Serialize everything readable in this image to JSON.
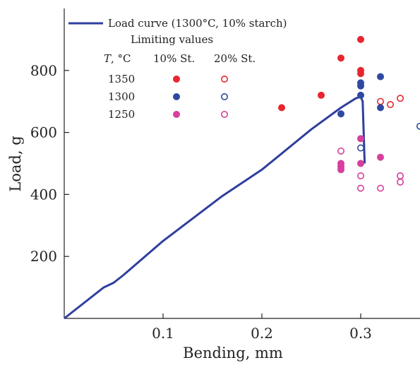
{
  "chart_data": {
    "type": "scatter",
    "xlabel": "Bending, mm",
    "ylabel": "Load, g",
    "xlim": [
      0,
      0.36
    ],
    "ylim": [
      0,
      1000
    ],
    "xticks": [
      0.1,
      0.2,
      0.3
    ],
    "yticks": [
      200,
      400,
      600,
      800
    ],
    "x_tick_labels": [
      "0.1",
      "0.2",
      "0.3"
    ],
    "y_tick_labels": [
      "200",
      "400",
      "600",
      "800"
    ],
    "grid": false,
    "legend": {
      "placement": "top-left",
      "line_label": "Load curve (1300°C, 10% starch)",
      "limiting_header": "Limiting values",
      "temp_header_italic": "T",
      "temp_header_rest": ", °C",
      "col1_header": "10% St.",
      "col2_header": "20% St.",
      "rows": [
        {
          "temp": "1350",
          "color": "#e8262f"
        },
        {
          "temp": "1300",
          "color": "#2e4aa0"
        },
        {
          "temp": "1250",
          "color": "#d63f9e"
        }
      ]
    },
    "line_series": {
      "name": "Load curve (1300°C, 10% starch)",
      "color": "#2e3f9e",
      "x": [
        0,
        0.04,
        0.05,
        0.06,
        0.1,
        0.16,
        0.2,
        0.25,
        0.28,
        0.295,
        0.3,
        0.302,
        0.303,
        0.304
      ],
      "y": [
        0,
        100,
        115,
        140,
        250,
        395,
        480,
        610,
        680,
        710,
        715,
        700,
        600,
        500
      ]
    },
    "scatter_series": [
      {
        "name": "1350 10% St.",
        "filled": true,
        "color": "#e8262f",
        "x": [
          0.22,
          0.26,
          0.28,
          0.3,
          0.3,
          0.3
        ],
        "y": [
          680,
          720,
          840,
          900,
          800,
          790
        ]
      },
      {
        "name": "1350 20% St.",
        "filled": false,
        "color": "#e8262f",
        "x": [
          0.32,
          0.33,
          0.34
        ],
        "y": [
          700,
          690,
          710
        ]
      },
      {
        "name": "1300 10% St.",
        "filled": true,
        "color": "#2e4aa0",
        "x": [
          0.28,
          0.3,
          0.3,
          0.3,
          0.32,
          0.32
        ],
        "y": [
          660,
          760,
          750,
          720,
          780,
          680
        ]
      },
      {
        "name": "1300 20% St.",
        "filled": false,
        "color": "#2e4aa0",
        "x": [
          0.3,
          0.36
        ],
        "y": [
          550,
          620
        ]
      },
      {
        "name": "1250 10% St.",
        "filled": true,
        "color": "#d63f9e",
        "x": [
          0.28,
          0.28,
          0.28,
          0.3,
          0.3,
          0.32
        ],
        "y": [
          500,
          490,
          480,
          580,
          500,
          520
        ]
      },
      {
        "name": "1250 20% St.",
        "filled": false,
        "color": "#d63f9e",
        "x": [
          0.28,
          0.3,
          0.3,
          0.32,
          0.34,
          0.34
        ],
        "y": [
          540,
          460,
          420,
          420,
          460,
          440
        ]
      }
    ]
  }
}
